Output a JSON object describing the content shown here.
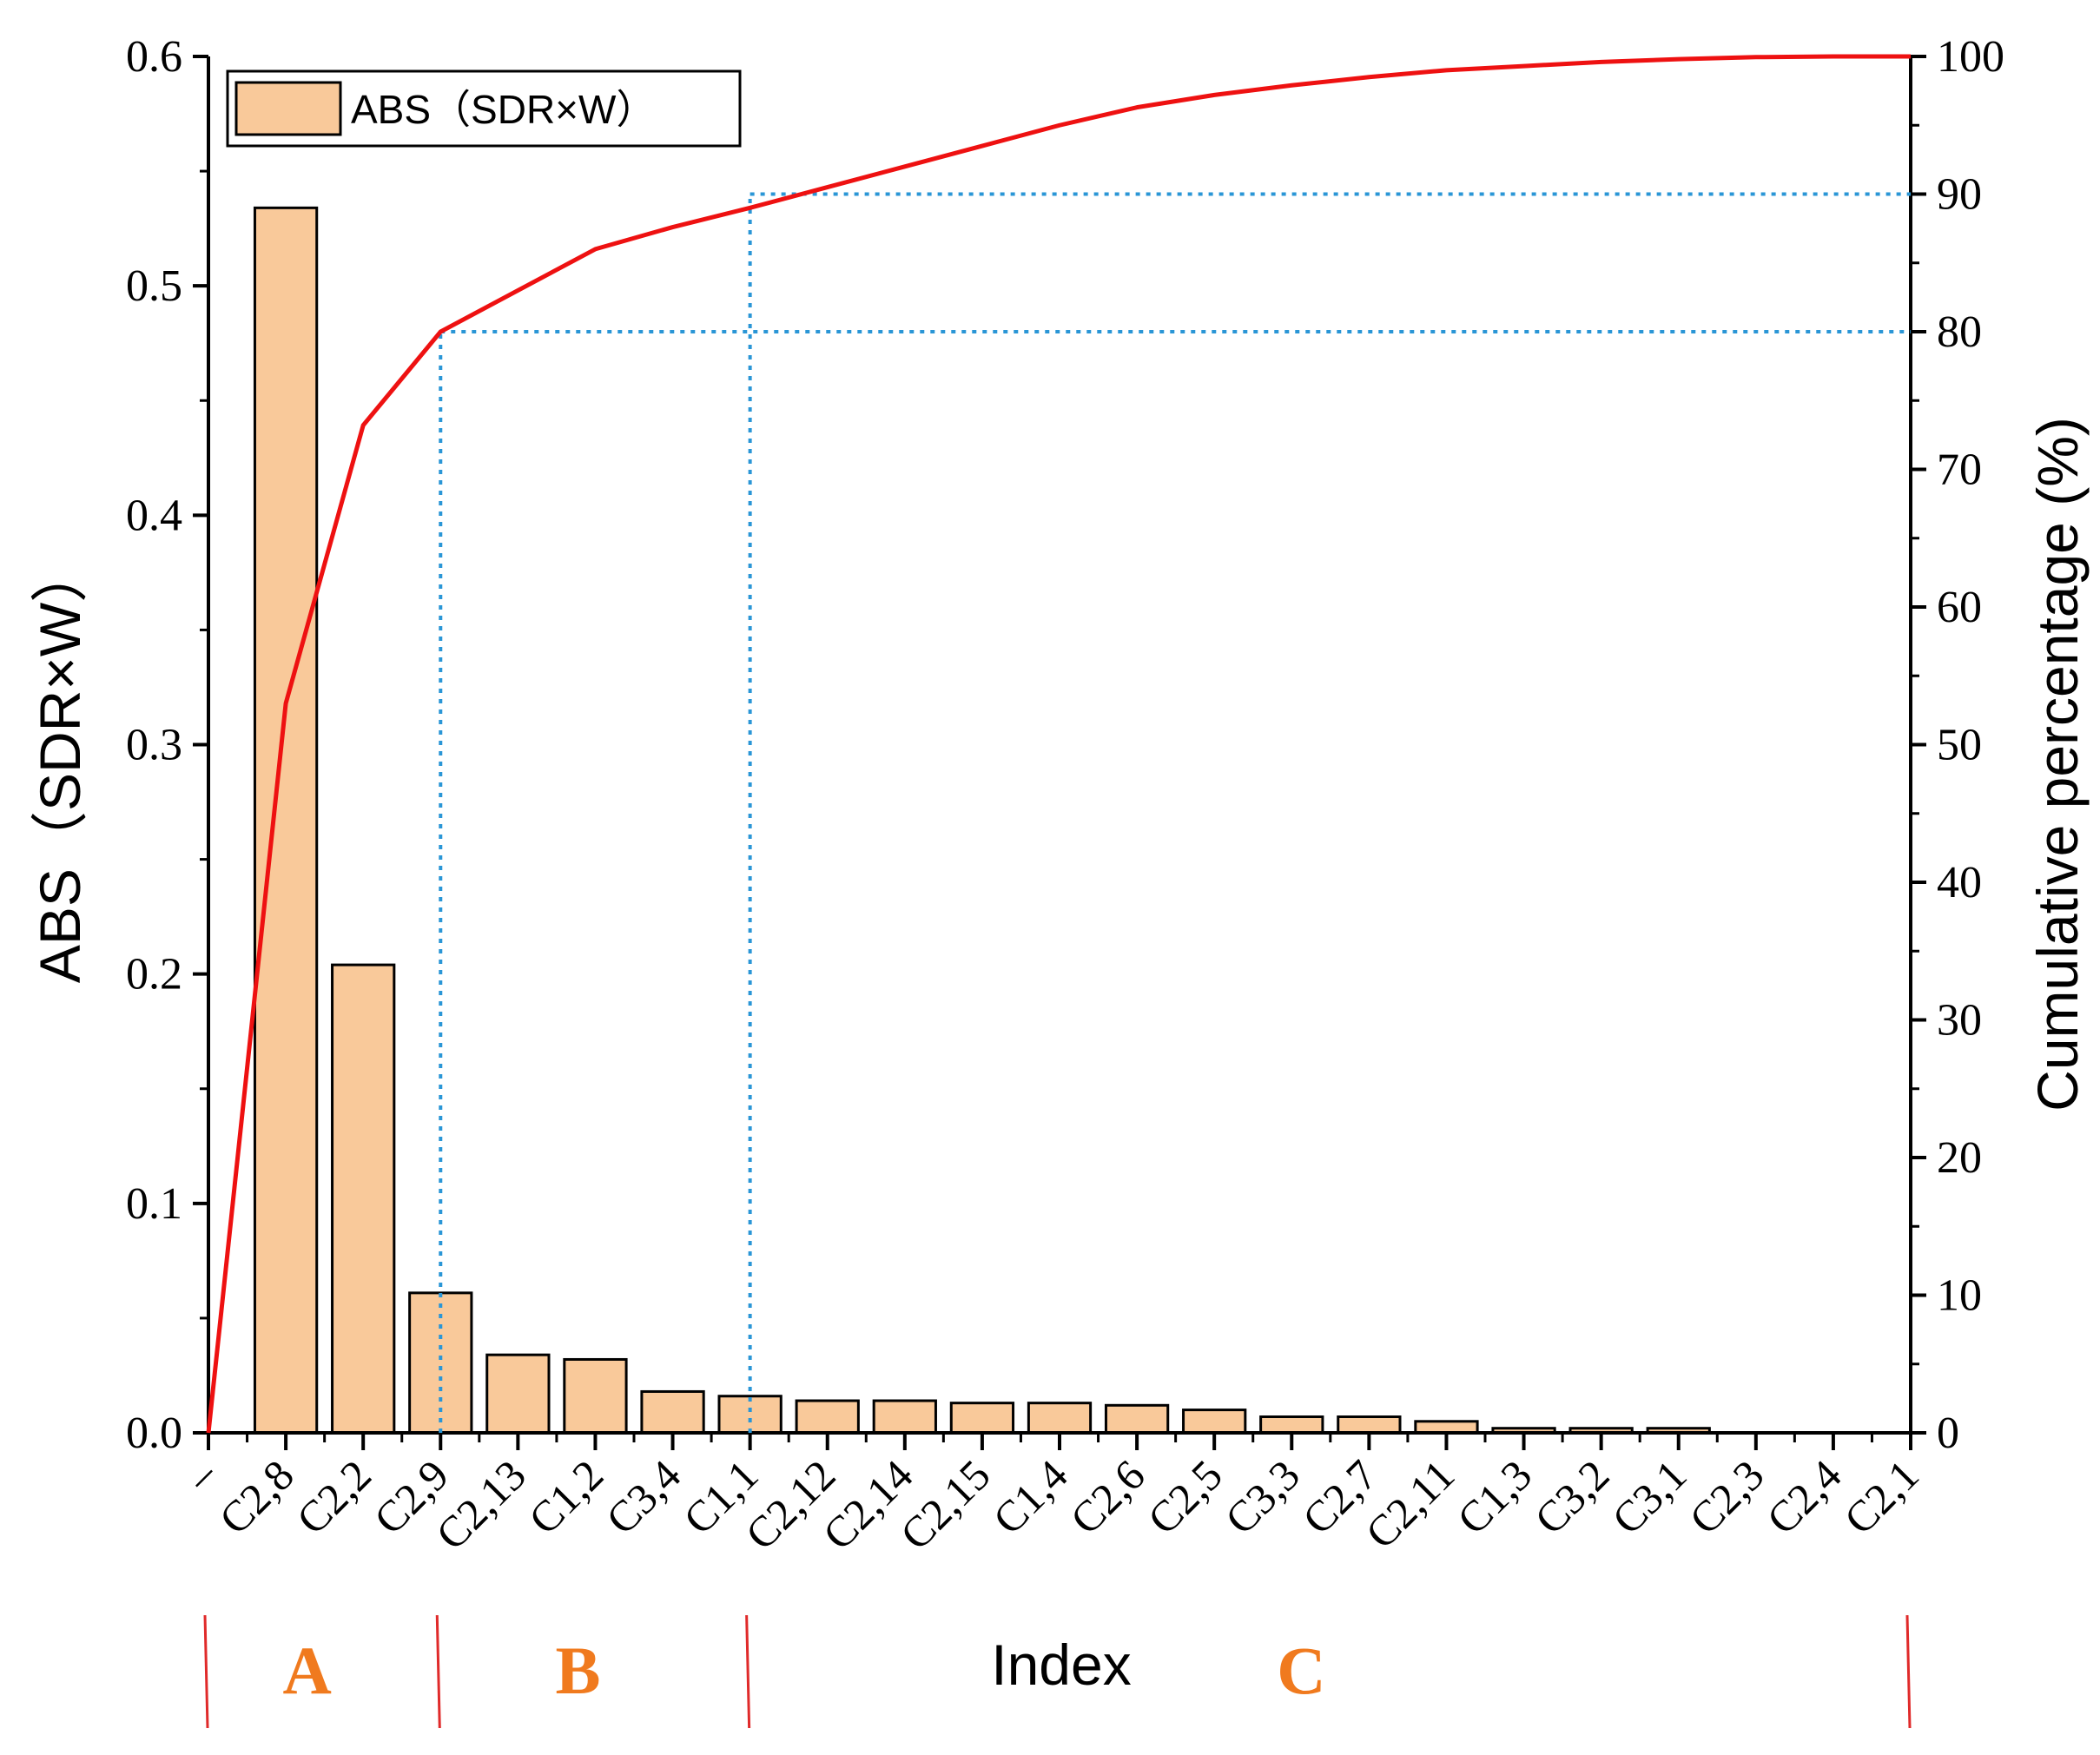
{
  "chart_data": {
    "type": "bar",
    "categories": [
      "–",
      "C2,8",
      "C2,2",
      "C2,9",
      "C2,13",
      "C1,2",
      "C3,4",
      "C1,1",
      "C2,12",
      "C2,14",
      "C2,15",
      "C1,4",
      "C2,6",
      "C2,5",
      "C3,3",
      "C2,7",
      "C2,11",
      "C1,3",
      "C3,2",
      "C3,1",
      "C2,3",
      "C2,4",
      "C2,1"
    ],
    "series": [
      {
        "name": "ABS（SDR×W）",
        "type": "bar",
        "axis": "left",
        "values": [
          null,
          0.534,
          0.204,
          0.061,
          0.034,
          0.032,
          0.018,
          0.016,
          0.014,
          0.014,
          0.013,
          0.013,
          0.012,
          0.01,
          0.007,
          0.007,
          0.005,
          0.002,
          0.002,
          0.002,
          0.0,
          0.0,
          0.0
        ]
      },
      {
        "type": "line",
        "axis": "right",
        "values": [
          0,
          53,
          73.2,
          80,
          83,
          86,
          87.6,
          89,
          90.5,
          92,
          93.5,
          95,
          96.3,
          97.2,
          97.9,
          98.5,
          99.0,
          99.3,
          99.6,
          99.8,
          99.95,
          100,
          100
        ]
      }
    ],
    "ylabel": "ABS（SDR×W）",
    "ylim": [
      0,
      0.6
    ],
    "yticks": [
      "0.0",
      "0.1",
      "0.2",
      "0.3",
      "0.4",
      "0.5",
      "0.6"
    ],
    "y2label": "Cumulative percentage (%)",
    "y2lim": [
      0,
      100
    ],
    "y2ticks": [
      "0",
      "10",
      "20",
      "30",
      "40",
      "50",
      "60",
      "70",
      "80",
      "90",
      "100"
    ],
    "xlabel": "Index",
    "legend": {
      "position": "top-left"
    },
    "reference_lines": [
      {
        "cumulative_percent": 80,
        "at_category": "C2,9"
      },
      {
        "cumulative_percent": 90,
        "at_category": "C1,1"
      }
    ],
    "groups": [
      {
        "label": "A",
        "from_category": "–",
        "to_category": "C2,9"
      },
      {
        "label": "B",
        "from_category": "C2,9",
        "to_category": "C1,1"
      },
      {
        "label": "C",
        "from_category": "C1,1",
        "to_category": "C2,1"
      }
    ],
    "colors": {
      "bar_fill": "#f9c99a",
      "bar_stroke": "#000000",
      "line": "#ee1111",
      "reference": "#2a96d6",
      "group_label": "#f07a1e",
      "group_separator": "#e02a2a"
    }
  }
}
